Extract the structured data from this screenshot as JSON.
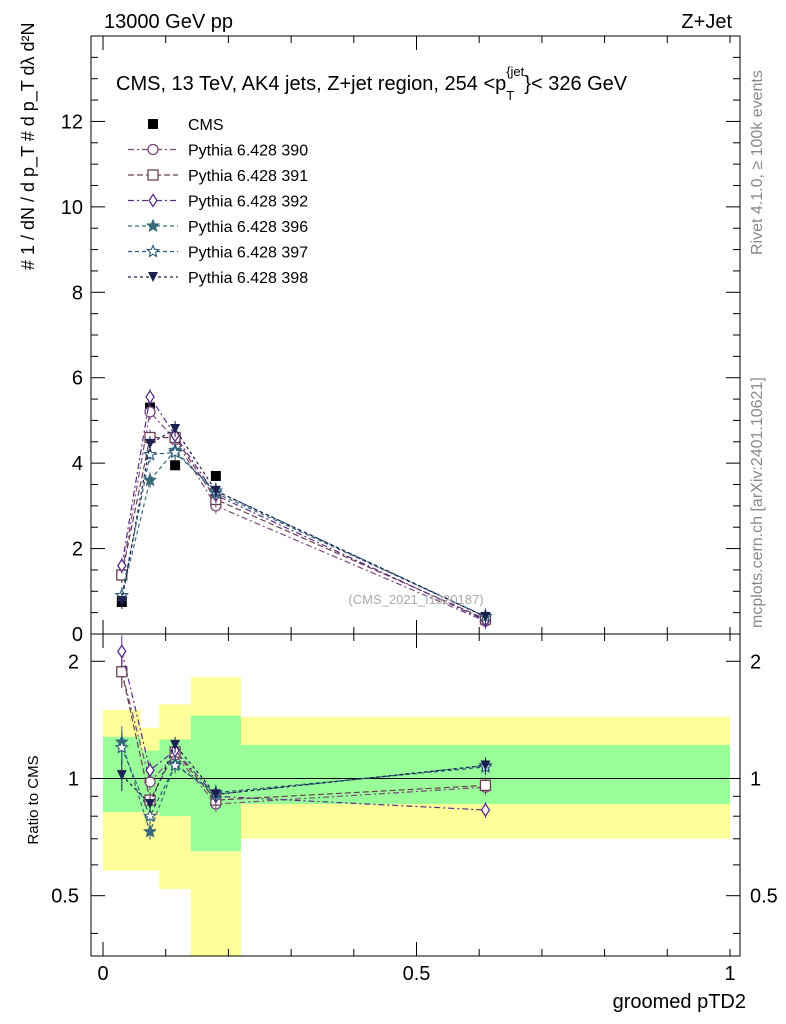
{
  "header": {
    "left": "13000 GeV pp",
    "right": "Z+Jet"
  },
  "main_title": "CMS, 13 TeV, AK4 jets, Z+jet region, 254 <p",
  "main_title_sup": "{jet",
  "main_title_sub": "T",
  "main_title_end": "}< 326 GeV",
  "ylabel_top": "# 1 / dN / d p_T # d p_T dλ d²N",
  "ylabel_bottom": "Ratio to CMS",
  "xlabel": "groomed pTD2",
  "watermark": "(CMS_2021_I1920187)",
  "side_right_top": "Rivet 4.1.0, ≥ 100k events",
  "side_right_bottom": "mcplots.cern.ch [arXiv:2401.10621]",
  "chart_data": [
    {
      "type": "line",
      "panel": "main",
      "xlim": [
        0,
        1
      ],
      "ylim": [
        0,
        14
      ],
      "yticks": [
        0,
        2,
        4,
        6,
        8,
        10,
        12
      ],
      "x": [
        0.03,
        0.075,
        0.115,
        0.18,
        0.61
      ],
      "series": [
        {
          "name": "CMS",
          "color": "#000000",
          "marker": "square-filled",
          "values": [
            0.75,
            5.3,
            3.95,
            3.7,
            0.38
          ]
        },
        {
          "name": "Pythia 6.428 390",
          "color": "#7b4a7b",
          "marker": "circle-open",
          "values": [
            1.4,
            5.2,
            4.55,
            3.0,
            0.3
          ]
        },
        {
          "name": "Pythia 6.428 391",
          "color": "#6b4050",
          "marker": "square-open",
          "values": [
            1.38,
            4.6,
            4.6,
            3.15,
            0.35
          ]
        },
        {
          "name": "Pythia 6.428 392",
          "color": "#5a2a8a",
          "marker": "diamond-open",
          "values": [
            1.6,
            5.55,
            4.65,
            3.25,
            0.32
          ]
        },
        {
          "name": "Pythia 6.428 396",
          "color": "#3a6a7a",
          "marker": "star-filled",
          "values": [
            0.9,
            3.6,
            4.3,
            3.3,
            0.41
          ]
        },
        {
          "name": "Pythia 6.428 397",
          "color": "#2a5a7a",
          "marker": "star-open",
          "values": [
            0.9,
            4.2,
            4.25,
            3.35,
            0.41
          ]
        },
        {
          "name": "Pythia 6.428 398",
          "color": "#1a2050",
          "marker": "triangle-down-filled",
          "values": [
            0.77,
            4.45,
            4.8,
            3.35,
            0.4
          ]
        }
      ]
    },
    {
      "type": "line",
      "panel": "ratio",
      "xlim": [
        0,
        1
      ],
      "ylim": [
        0.35,
        2.35
      ],
      "yticks": [
        0.5,
        1,
        2
      ],
      "xticks": [
        0,
        0.5,
        1
      ],
      "reference": 1,
      "bins": [
        [
          0,
          0.06
        ],
        [
          0.06,
          0.09
        ],
        [
          0.09,
          0.14
        ],
        [
          0.14,
          0.22
        ],
        [
          0.22,
          1.0
        ]
      ],
      "band_inner": [
        [
          0.82,
          1.28
        ],
        [
          0.82,
          1.18
        ],
        [
          0.8,
          1.26
        ],
        [
          0.65,
          1.45
        ],
        [
          0.86,
          1.22
        ]
      ],
      "band_outer": [
        [
          0.58,
          1.5
        ],
        [
          0.58,
          1.35
        ],
        [
          0.52,
          1.55
        ],
        [
          0.35,
          1.82
        ],
        [
          0.7,
          1.44
        ]
      ],
      "x": [
        0.03,
        0.075,
        0.115,
        0.18,
        0.61
      ],
      "series": [
        {
          "name": "Pythia 6.428 390",
          "color": "#7b4a7b",
          "marker": "circle-open",
          "values": [
            1.88,
            0.98,
            1.15,
            0.86,
            0.95
          ]
        },
        {
          "name": "Pythia 6.428 391",
          "color": "#6b4050",
          "marker": "square-open",
          "values": [
            1.88,
            0.88,
            1.17,
            0.88,
            0.96
          ]
        },
        {
          "name": "Pythia 6.428 392",
          "color": "#5a2a8a",
          "marker": "diamond-open",
          "values": [
            2.12,
            1.05,
            1.18,
            0.9,
            0.83
          ]
        },
        {
          "name": "Pythia 6.428 396",
          "color": "#3a6a7a",
          "marker": "star-filled",
          "values": [
            1.24,
            0.73,
            1.09,
            0.91,
            1.08
          ]
        },
        {
          "name": "Pythia 6.428 397",
          "color": "#2a5a7a",
          "marker": "star-open",
          "values": [
            1.2,
            0.8,
            1.08,
            0.92,
            1.07
          ]
        },
        {
          "name": "Pythia 6.428 398",
          "color": "#1a2050",
          "marker": "triangle-down-filled",
          "values": [
            1.02,
            0.86,
            1.22,
            0.91,
            1.08
          ]
        }
      ]
    }
  ]
}
